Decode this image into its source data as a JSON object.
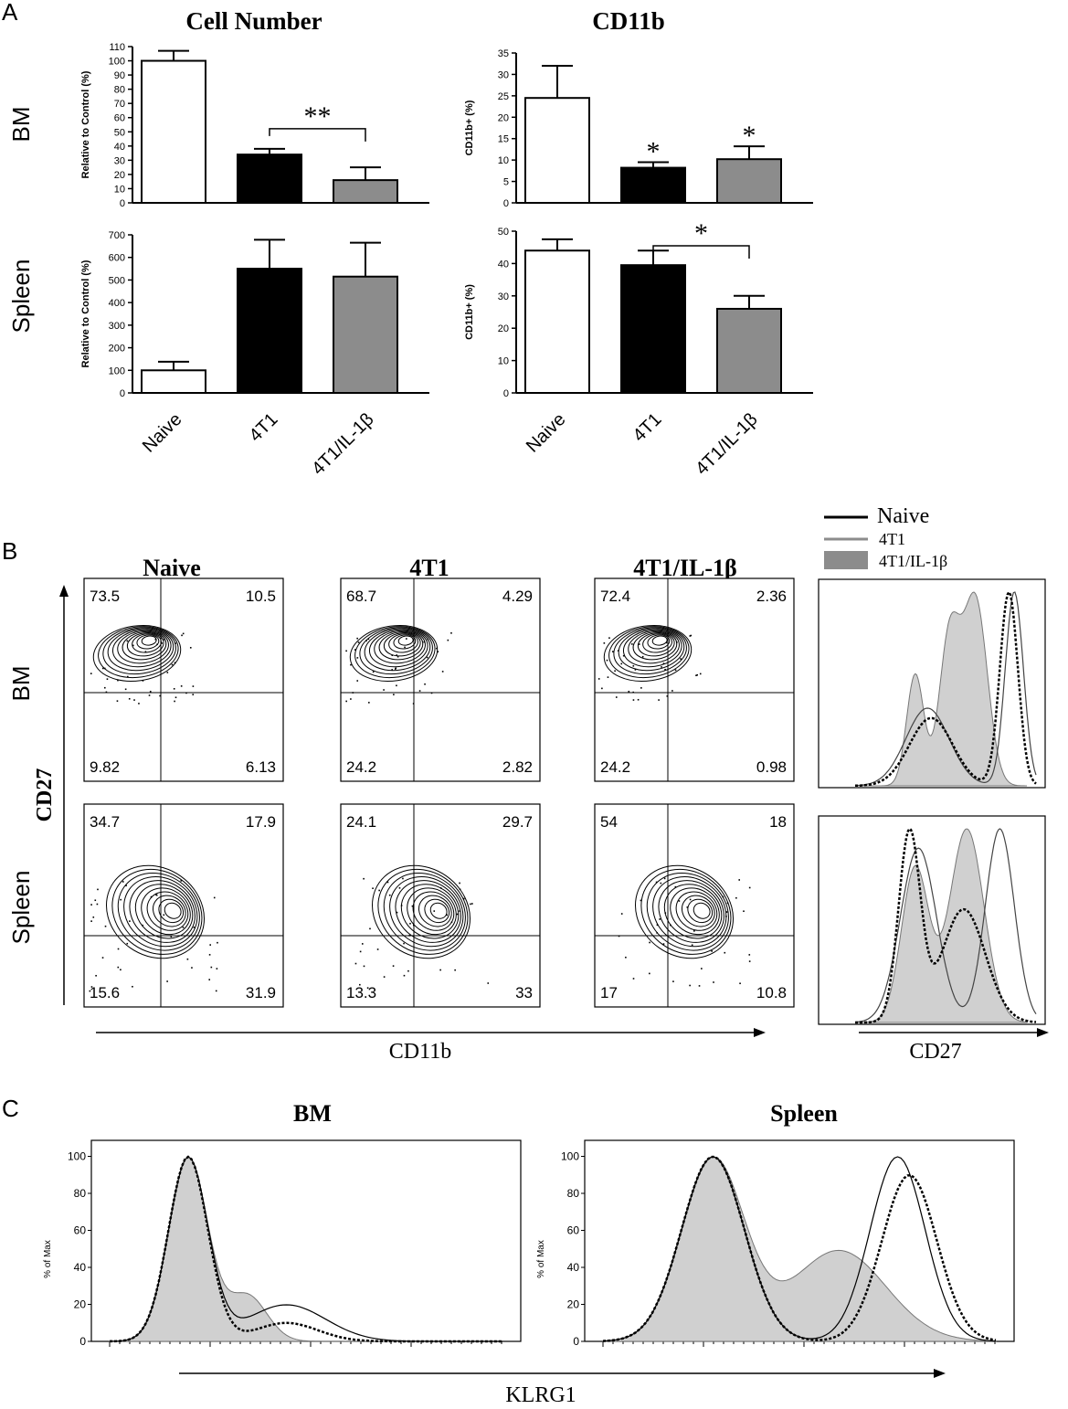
{
  "panel_labels": [
    "A",
    "B",
    "C"
  ],
  "colors": {
    "naive": "#ffffff",
    "t4": "#000000",
    "il1b": "#8c8c8c",
    "hist_fill": "#d0d0d0"
  },
  "panelA": {
    "row_labels": [
      "BM",
      "Spleen"
    ],
    "categories": [
      "Naive",
      "4T1",
      "4T1/IL-1β"
    ]
  },
  "panelB": {
    "col_titles": [
      "Naive",
      "4T1",
      "4T1/IL-1β"
    ],
    "row_labels": [
      "BM",
      "Spleen"
    ],
    "y_axis_label": "CD27",
    "x_axis_label": "CD11b",
    "hist_x_label": "CD27",
    "legend": [
      "Naive",
      "4T1",
      "4T1/IL-1β"
    ],
    "quadrants": [
      {
        "row": "BM",
        "sample": "Naive",
        "ul": "73.5",
        "ur": "10.5",
        "ll": "9.82",
        "lr": "6.13"
      },
      {
        "row": "BM",
        "sample": "4T1",
        "ul": "68.7",
        "ur": "4.29",
        "ll": "24.2",
        "lr": "2.82"
      },
      {
        "row": "BM",
        "sample": "4T1/IL-1β",
        "ul": "72.4",
        "ur": "2.36",
        "ll": "24.2",
        "lr": "0.98"
      },
      {
        "row": "Spleen",
        "sample": "Naive",
        "ul": "34.7",
        "ur": "17.9",
        "ll": "15.6",
        "lr": "31.9"
      },
      {
        "row": "Spleen",
        "sample": "4T1",
        "ul": "24.1",
        "ur": "29.7",
        "ll": "13.3",
        "lr": "33"
      },
      {
        "row": "Spleen",
        "sample": "4T1/IL-1β",
        "ul": "54",
        "ur": "18",
        "ll": "17",
        "lr": "10.8"
      }
    ]
  },
  "panelC": {
    "titles": [
      "BM",
      "Spleen"
    ],
    "y_label": "% of Max",
    "x_label": "KLRG1",
    "y_ticks": [
      "0",
      "20",
      "40",
      "60",
      "80",
      "100"
    ]
  },
  "chart_data": [
    {
      "type": "bar",
      "title": "Cell Number",
      "row": "BM",
      "ylabel": "Relative to Control (%)",
      "categories": [
        "Naive",
        "4T1",
        "4T1/IL-1β"
      ],
      "values": [
        100,
        34,
        16
      ],
      "errors": [
        7,
        4,
        9
      ],
      "ylim": [
        0,
        110
      ],
      "yticks": [
        0,
        10,
        20,
        30,
        40,
        50,
        60,
        70,
        80,
        90,
        100,
        110
      ],
      "annotations": [
        {
          "text": "**",
          "between": [
            1,
            2
          ]
        }
      ]
    },
    {
      "type": "bar",
      "title": "CD11b",
      "row": "BM",
      "ylabel": "CD11b+ (%)",
      "categories": [
        "Naive",
        "4T1",
        "4T1/IL-1β"
      ],
      "values": [
        24.5,
        8.2,
        10.2
      ],
      "errors": [
        7.5,
        1.3,
        3
      ],
      "ylim": [
        0,
        35
      ],
      "yticks": [
        0,
        5,
        10,
        15,
        20,
        25,
        30,
        35
      ],
      "annotations": [
        {
          "text": "*",
          "over": 1
        },
        {
          "text": "*",
          "over": 2
        }
      ]
    },
    {
      "type": "bar",
      "row": "Spleen",
      "ylabel": "Relative to Control (%)",
      "categories": [
        "Naive",
        "4T1",
        "4T1/IL-1β"
      ],
      "values": [
        100,
        550,
        515
      ],
      "errors": [
        38,
        128,
        150
      ],
      "ylim": [
        0,
        700
      ],
      "yticks": [
        0,
        100,
        200,
        300,
        400,
        500,
        600,
        700
      ],
      "annotations": []
    },
    {
      "type": "bar",
      "row": "Spleen",
      "ylabel": "CD11b+ (%)",
      "categories": [
        "Naive",
        "4T1",
        "4T1/IL-1β"
      ],
      "values": [
        44,
        39.5,
        26
      ],
      "errors": [
        3.5,
        4.5,
        4
      ],
      "ylim": [
        0,
        50
      ],
      "yticks": [
        0,
        10,
        20,
        30,
        40,
        50
      ],
      "annotations": [
        {
          "text": "*",
          "between": [
            1,
            2
          ]
        }
      ]
    }
  ]
}
